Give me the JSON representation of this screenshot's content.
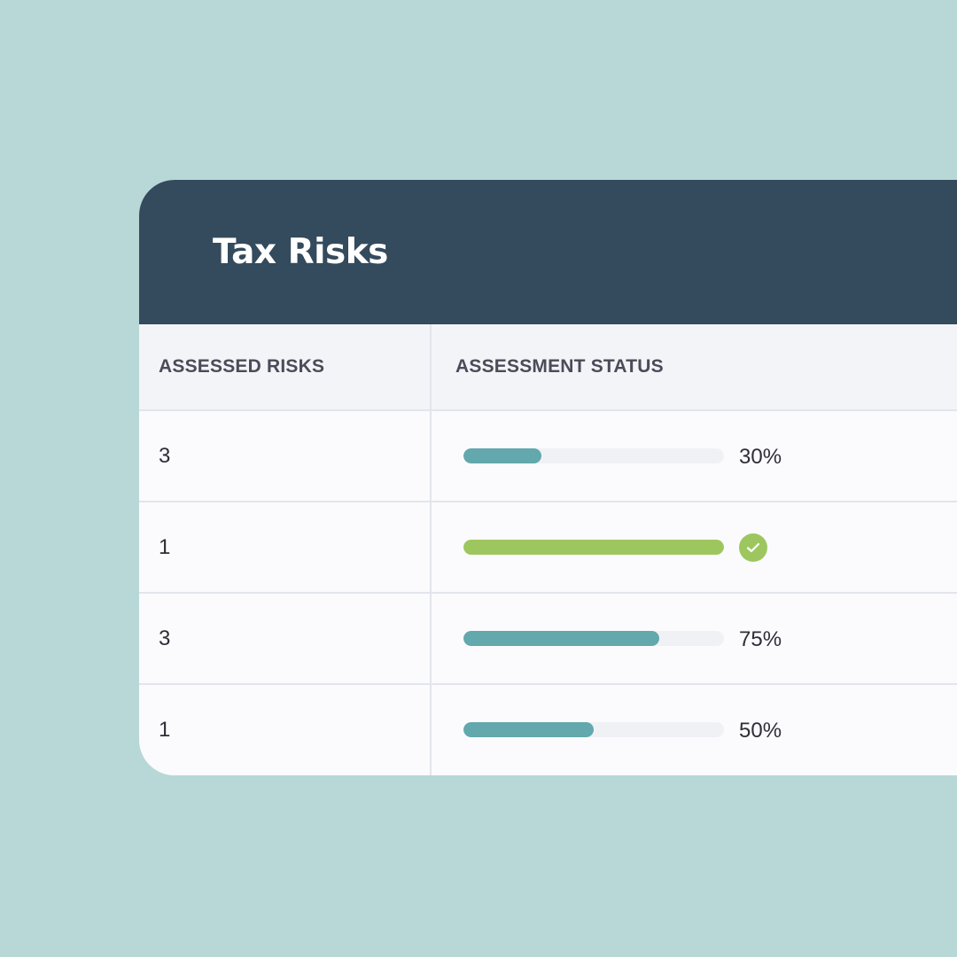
{
  "card": {
    "title": "Tax Risks"
  },
  "table": {
    "headers": {
      "assessed_risks": "ASSESSED RISKS",
      "assessment_status": "ASSESSMENT STATUS"
    },
    "rows": [
      {
        "assessed_risks": "3",
        "progress": 0.3,
        "status_label": "30%",
        "complete": false
      },
      {
        "assessed_risks": "1",
        "progress": 1.0,
        "status_label": "",
        "complete": true,
        "status_icon": "check-circle-icon"
      },
      {
        "assessed_risks": "3",
        "progress": 0.75,
        "status_label": "75%",
        "complete": false
      },
      {
        "assessed_risks": "1",
        "progress": 0.5,
        "status_label": "50%",
        "complete": false
      }
    ]
  },
  "colors": {
    "background": "#b7d8d6",
    "header": "#344a5d",
    "progress_in_progress": "#62a8ad",
    "progress_complete": "#9dc75e"
  }
}
